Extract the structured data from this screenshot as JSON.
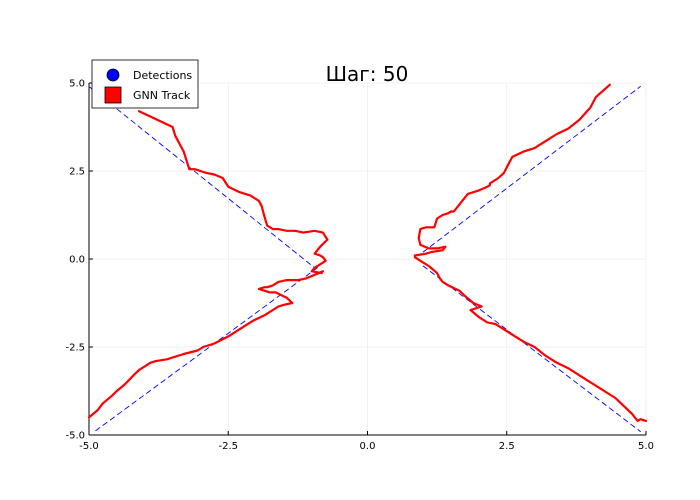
{
  "chart_data": {
    "type": "line",
    "title": "Шаг: 50",
    "xlabel": "",
    "ylabel": "",
    "xlim": [
      -5,
      5
    ],
    "ylim": [
      -5,
      5
    ],
    "xticks": [
      -5,
      -2.5,
      0,
      2.5,
      5
    ],
    "xtick_labels": [
      "-5.0",
      "-2.5",
      "0.0",
      "2.5",
      "5.0"
    ],
    "yticks": [
      -5,
      -2.5,
      0,
      2.5,
      5
    ],
    "ytick_labels": [
      "-5.0",
      "-2.5",
      "0.0",
      "2.5",
      "5.0"
    ],
    "grid": true,
    "legend_position": "top-left",
    "legend": [
      {
        "label": "Detections",
        "marker": "circle",
        "color": "#0000ff"
      },
      {
        "label": "GNN Track",
        "marker": "square",
        "color": "#ff0000"
      }
    ],
    "series": [
      {
        "label_ref": 0,
        "style": "dashed",
        "color": "#0000ff",
        "segments": [
          {
            "x": [
              -5.0,
              -0.95
            ],
            "y": [
              4.9,
              -0.25
            ]
          },
          {
            "x": [
              -0.9,
              -4.9
            ],
            "y": [
              -0.25,
              -4.9
            ]
          },
          {
            "x": [
              1.0,
              4.9
            ],
            "y": [
              0.2,
              4.9
            ]
          },
          {
            "x": [
              1.0,
              4.9
            ],
            "y": [
              -0.2,
              -4.9
            ]
          }
        ]
      },
      {
        "label_ref": 1,
        "style": "solid",
        "color": "#ff0000",
        "segments": [
          {
            "x": [
              -4.1,
              -3.5,
              -3.45,
              -3.35,
              -3.3,
              -3.2,
              -3.1,
              -3.0,
              -2.9,
              -2.75,
              -2.6,
              -2.5,
              -2.3,
              -2.1,
              -1.95,
              -1.9,
              -1.85,
              -1.8,
              -1.7,
              -1.6,
              -1.45,
              -1.3,
              -1.15,
              -0.95,
              -0.8,
              -0.72,
              -0.85,
              -0.95,
              -0.85,
              -0.8,
              -0.75,
              -0.85,
              -0.95,
              -1.0,
              -0.82
            ],
            "y": [
              4.2,
              3.75,
              3.5,
              3.2,
              3.05,
              2.55,
              2.55,
              2.5,
              2.45,
              2.4,
              2.3,
              2.05,
              1.9,
              1.8,
              1.65,
              1.5,
              1.2,
              0.95,
              0.85,
              0.85,
              0.8,
              0.8,
              0.75,
              0.8,
              0.75,
              0.55,
              0.35,
              0.15,
              0.1,
              0.05,
              -0.05,
              -0.15,
              -0.25,
              -0.35,
              -0.4
            ]
          },
          {
            "x": [
              -0.8,
              -0.95,
              -1.1,
              -1.25,
              -1.45,
              -1.6,
              -1.7,
              -1.8,
              -1.85,
              -1.95,
              -1.75,
              -1.65,
              -1.45,
              -1.35,
              -1.5,
              -1.6,
              -1.85,
              -2.05,
              -2.25,
              -2.5,
              -2.75,
              -2.95,
              -3.05,
              -3.3,
              -3.6,
              -3.8,
              -3.9,
              -4.0,
              -4.1,
              -4.2,
              -4.35,
              -4.5,
              -4.6,
              -4.75,
              -4.85,
              -5.0
            ],
            "y": [
              -0.35,
              -0.45,
              -0.55,
              -0.6,
              -0.6,
              -0.65,
              -0.75,
              -0.8,
              -0.8,
              -0.85,
              -0.95,
              -0.95,
              -1.1,
              -1.25,
              -1.3,
              -1.35,
              -1.6,
              -1.75,
              -1.95,
              -2.2,
              -2.4,
              -2.5,
              -2.6,
              -2.7,
              -2.85,
              -2.9,
              -2.95,
              -3.05,
              -3.15,
              -3.3,
              -3.55,
              -3.75,
              -3.9,
              -4.1,
              -4.3,
              -4.5
            ]
          },
          {
            "x": [
              4.35,
              4.1,
              4.05,
              4.0,
              3.8,
              3.6,
              3.4,
              3.2,
              3.0,
              2.8,
              2.6,
              2.55,
              2.45,
              2.35,
              2.2,
              2.2,
              2.15,
              2.0,
              1.8,
              1.55,
              1.5,
              1.45,
              1.35,
              1.25,
              1.2,
              1.05,
              0.95,
              0.92,
              0.95,
              1.1,
              1.25,
              1.4,
              1.35,
              1.15,
              1.05,
              0.85
            ],
            "y": [
              4.95,
              4.6,
              4.45,
              4.3,
              3.95,
              3.7,
              3.55,
              3.35,
              3.15,
              3.05,
              2.9,
              2.75,
              2.45,
              2.3,
              2.15,
              2.1,
              2.05,
              1.95,
              1.85,
              1.35,
              1.35,
              1.3,
              1.25,
              1.15,
              0.9,
              0.9,
              0.85,
              0.6,
              0.4,
              0.3,
              0.3,
              0.35,
              0.25,
              0.2,
              0.15,
              0.1
            ]
          },
          {
            "x": [
              0.85,
              0.95,
              1.1,
              1.25,
              1.3,
              1.35,
              1.45,
              1.65,
              1.75,
              1.9,
              2.05,
              1.85,
              2.0,
              2.15,
              2.3,
              2.45,
              2.6,
              2.8,
              3.0,
              3.2,
              3.4,
              3.6,
              3.75,
              3.9,
              4.05,
              4.2,
              4.35,
              4.45,
              4.55,
              4.65,
              4.75,
              4.85,
              4.9,
              5.0
            ],
            "y": [
              0.05,
              -0.05,
              -0.2,
              -0.4,
              -0.55,
              -0.65,
              -0.75,
              -0.9,
              -1.05,
              -1.25,
              -1.35,
              -1.45,
              -1.65,
              -1.8,
              -1.85,
              -2.0,
              -2.15,
              -2.35,
              -2.5,
              -2.75,
              -2.95,
              -3.1,
              -3.25,
              -3.4,
              -3.55,
              -3.7,
              -3.85,
              -3.95,
              -4.1,
              -4.25,
              -4.4,
              -4.6,
              -4.55,
              -4.6
            ]
          }
        ]
      }
    ]
  }
}
